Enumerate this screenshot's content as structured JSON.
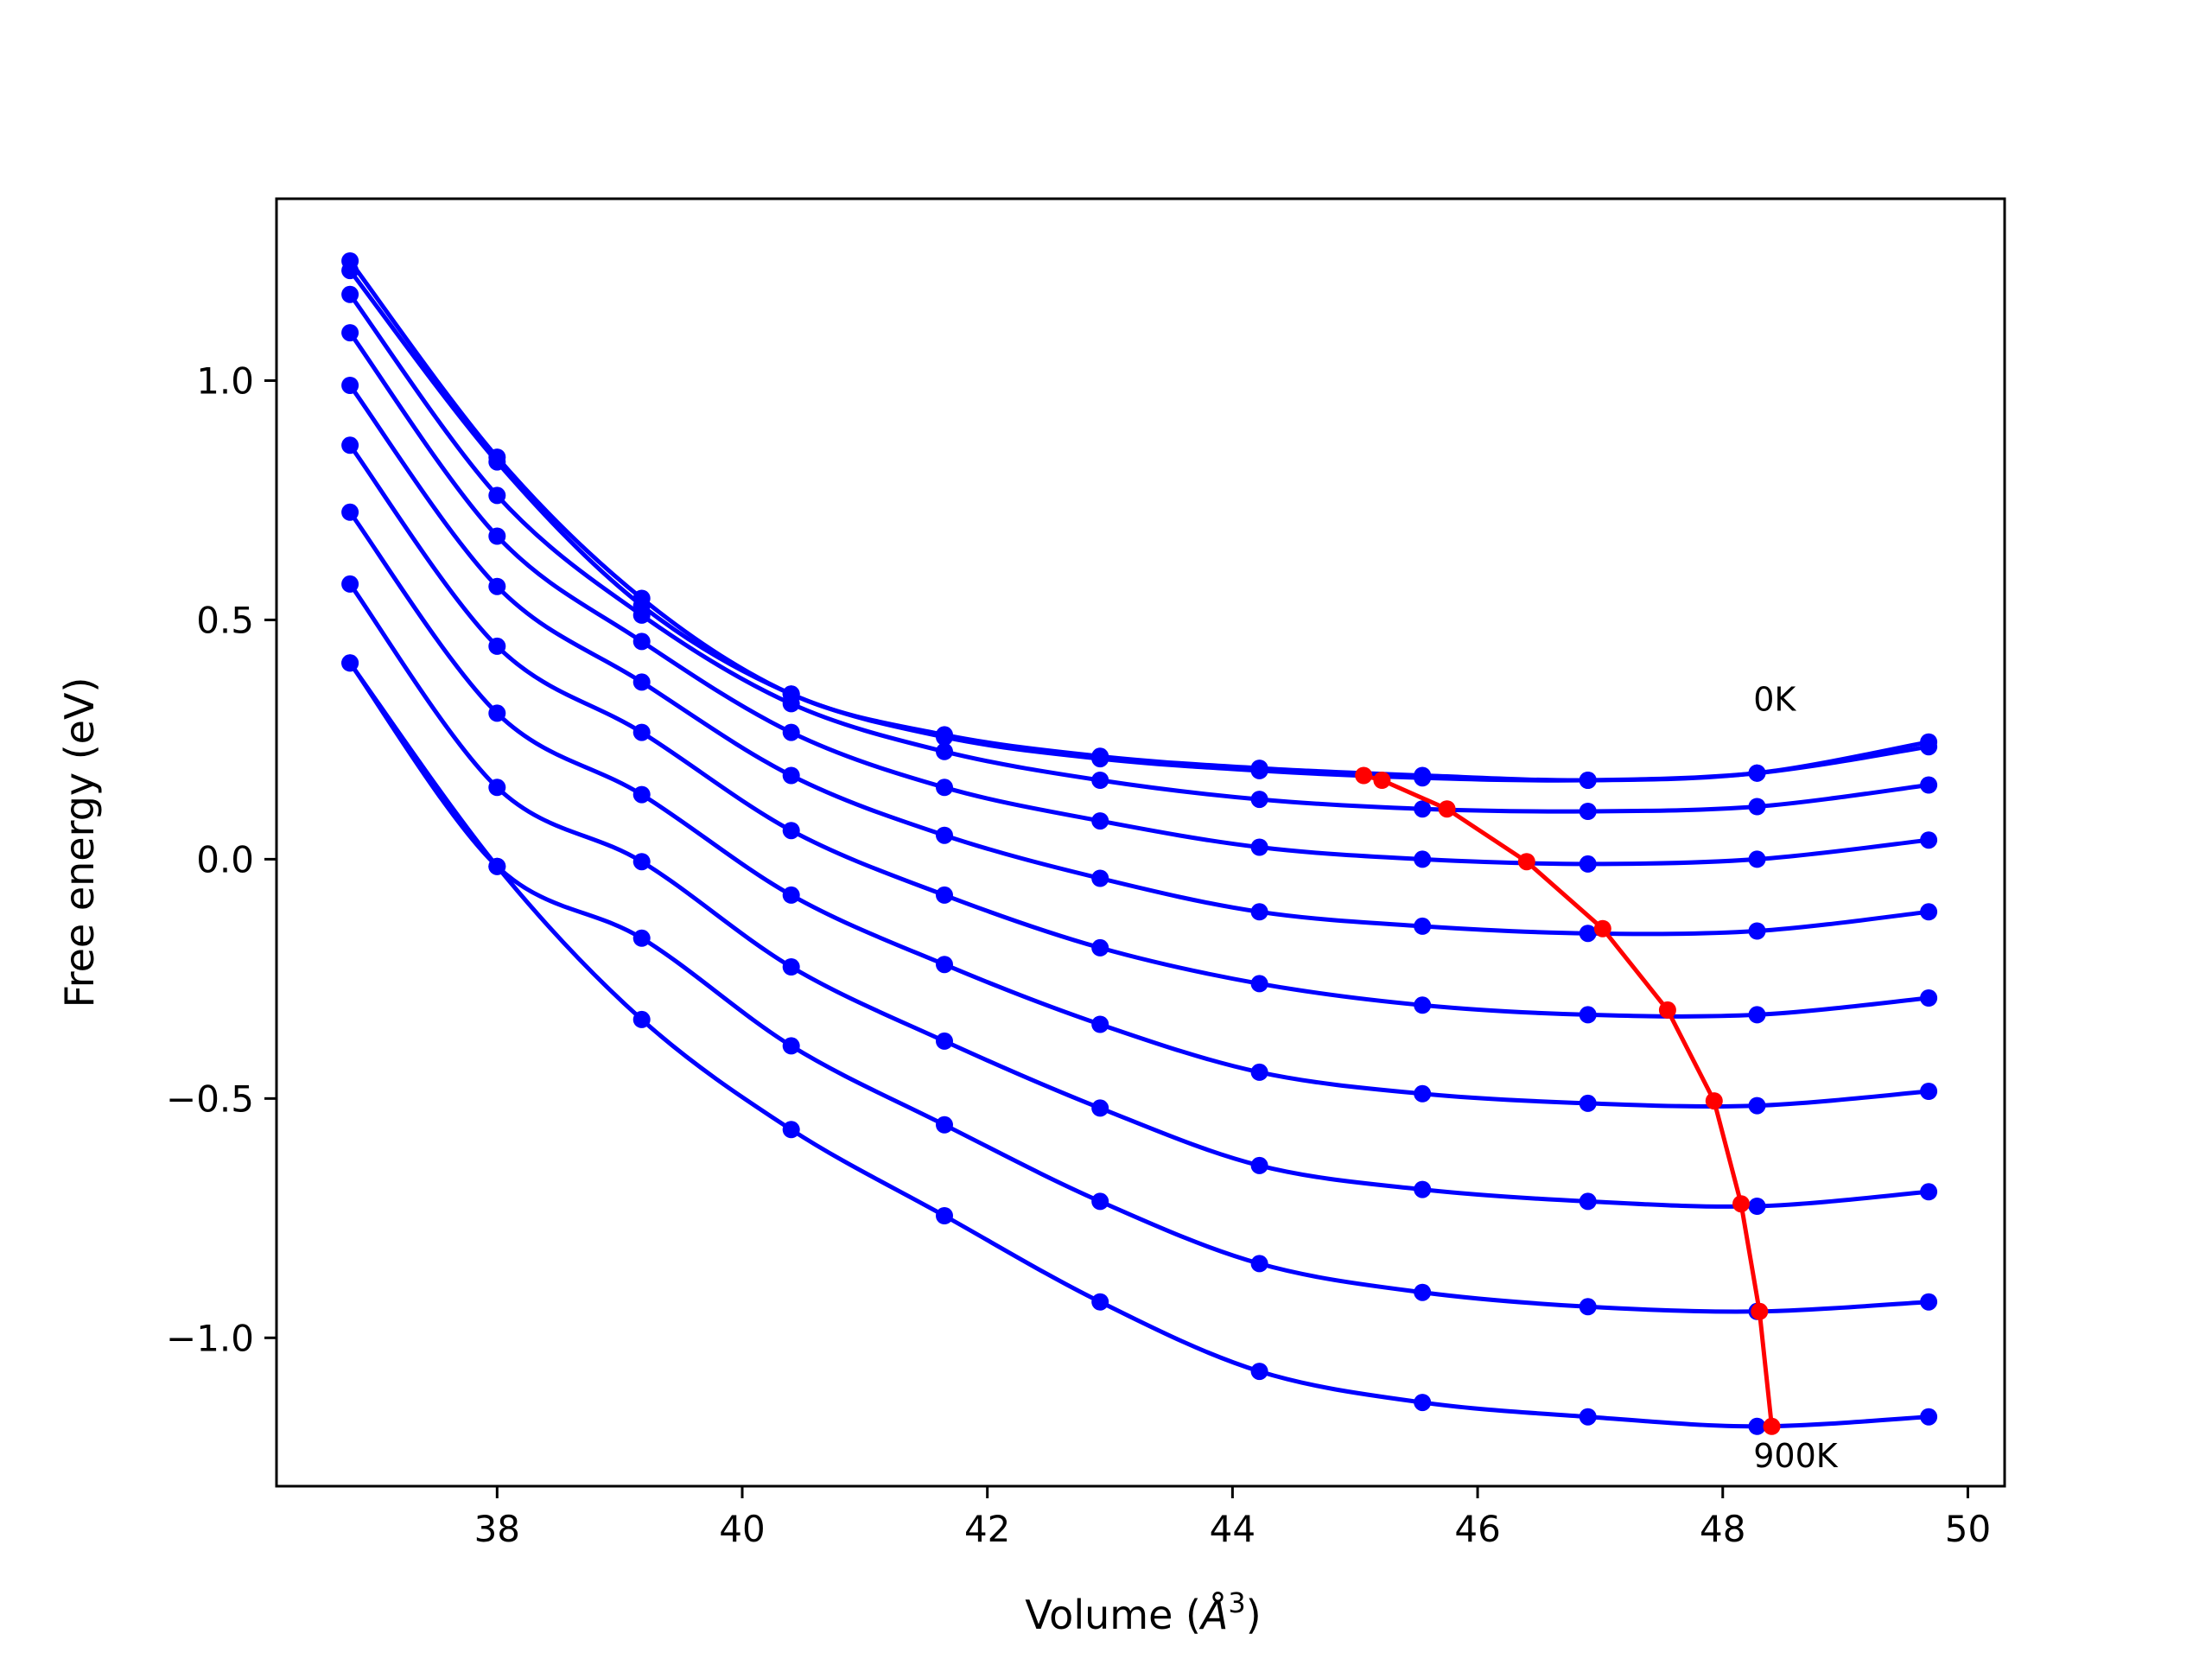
{
  "chart_data": {
    "type": "line",
    "xlabel": "Volume (",
    "xlabel_unit": "Å",
    "xlabel_exp": "3",
    "xlabel_close": ")",
    "ylabel": "Free energy (eV)",
    "xlim": [
      36.2,
      50.3
    ],
    "ylim": [
      -1.31,
      1.38
    ],
    "xticks": [
      38,
      40,
      42,
      44,
      46,
      48,
      50
    ],
    "xtick_labels": [
      "38",
      "40",
      "42",
      "44",
      "46",
      "48",
      "50"
    ],
    "yticks": [
      1.0,
      0.5,
      0.0,
      -0.5,
      -1.0
    ],
    "ytick_labels": [
      "1.0",
      "0.5",
      "0.0",
      "−0.5",
      "−1.0"
    ],
    "grid": false,
    "annotations": [
      {
        "text": "0K",
        "x": 48.25,
        "y": 0.31
      },
      {
        "text": "900K",
        "x": 48.25,
        "y": -1.27
      }
    ],
    "x": [
      36.8,
      38.0,
      39.18,
      40.4,
      41.65,
      42.92,
      44.22,
      45.55,
      46.9,
      48.28,
      49.68
    ],
    "series": [
      {
        "values": [
          1.25,
          0.84,
          0.545,
          0.345,
          0.26,
          0.215,
          0.19,
          0.175,
          0.165,
          0.18,
          0.245
        ]
      },
      {
        "values": [
          1.23,
          0.83,
          0.53,
          0.345,
          0.255,
          0.21,
          0.185,
          0.17,
          0.165,
          0.18,
          0.235
        ]
      },
      {
        "values": [
          1.18,
          0.76,
          0.51,
          0.325,
          0.225,
          0.165,
          0.125,
          0.105,
          0.1,
          0.11,
          0.155
        ]
      },
      {
        "values": [
          1.1,
          0.675,
          0.455,
          0.265,
          0.15,
          0.08,
          0.025,
          0.0,
          -0.01,
          0.0,
          0.04
        ]
      },
      {
        "values": [
          0.99,
          0.57,
          0.37,
          0.175,
          0.05,
          -0.04,
          -0.11,
          -0.14,
          -0.155,
          -0.15,
          -0.11
        ]
      },
      {
        "values": [
          0.865,
          0.445,
          0.265,
          0.06,
          -0.075,
          -0.185,
          -0.26,
          -0.305,
          -0.325,
          -0.325,
          -0.29
        ]
      },
      {
        "values": [
          0.725,
          0.305,
          0.135,
          -0.075,
          -0.22,
          -0.345,
          -0.445,
          -0.49,
          -0.51,
          -0.515,
          -0.485
        ]
      },
      {
        "values": [
          0.575,
          0.15,
          -0.005,
          -0.225,
          -0.38,
          -0.52,
          -0.64,
          -0.69,
          -0.715,
          -0.725,
          -0.695
        ]
      },
      {
        "values": [
          0.41,
          -0.015,
          -0.165,
          -0.39,
          -0.555,
          -0.715,
          -0.845,
          -0.905,
          -0.935,
          -0.945,
          -0.925
        ]
      },
      {
        "values": [
          0.41,
          -0.015,
          -0.335,
          -0.565,
          -0.745,
          -0.925,
          -1.07,
          -1.135,
          -1.165,
          -1.185,
          -1.165
        ]
      }
    ],
    "minima": {
      "x": [
        45.07,
        45.22,
        45.75,
        46.4,
        47.02,
        47.55,
        47.93,
        48.15,
        48.3,
        48.4
      ],
      "y": [
        0.175,
        0.165,
        0.105,
        -0.005,
        -0.145,
        -0.315,
        -0.505,
        -0.72,
        -0.945,
        -1.185
      ]
    },
    "colors": {
      "series": "#0000ff",
      "minima": "#ff0000",
      "axes": "#000000"
    }
  }
}
